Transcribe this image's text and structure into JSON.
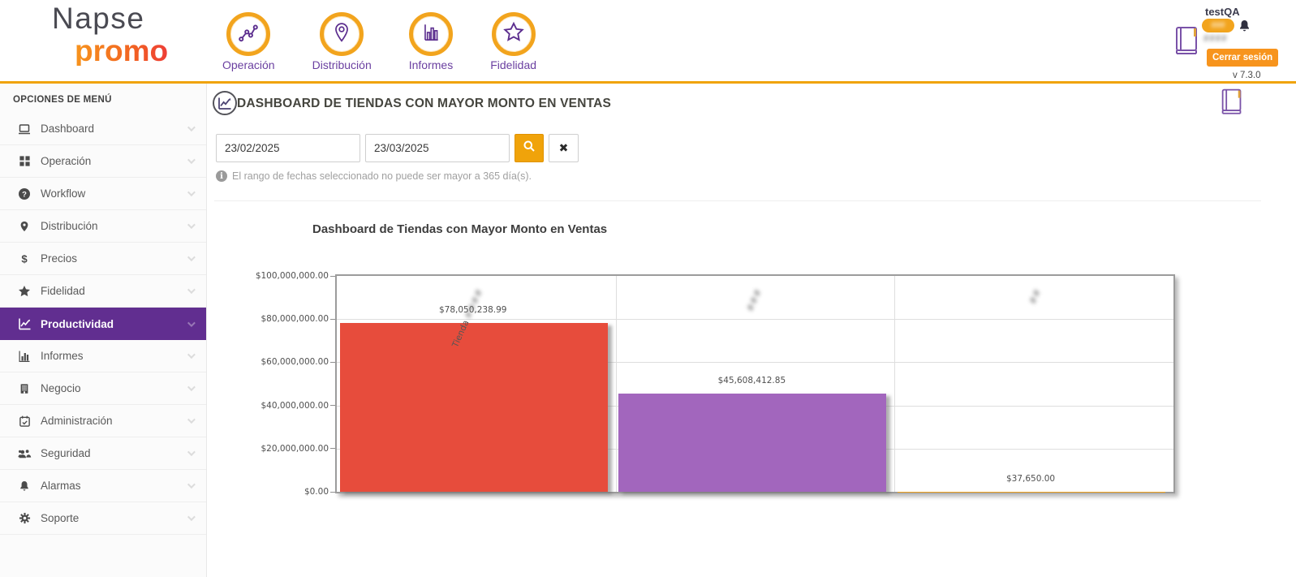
{
  "app": {
    "brand_line1": "Napse",
    "brand_line2": "promo",
    "version": "v 7.3.0"
  },
  "header": {
    "nav": [
      {
        "label": "Operación",
        "icon": "share-nodes-icon"
      },
      {
        "label": "Distribución",
        "icon": "map-pin-icon"
      },
      {
        "label": "Informes",
        "icon": "bar-chart-icon"
      },
      {
        "label": "Fidelidad",
        "icon": "star-icon"
      }
    ],
    "user": {
      "name": "testQA",
      "badge_text_masked": "###",
      "detail_text_masked": "####",
      "logout_label": "Cerrar sesión"
    }
  },
  "sidebar": {
    "title": "OPCIONES DE MENÚ",
    "items": [
      {
        "label": "Dashboard",
        "icon": "monitor-icon",
        "active": false
      },
      {
        "label": "Operación",
        "icon": "grid-icon",
        "active": false
      },
      {
        "label": "Workflow",
        "icon": "question-circle-icon",
        "active": false
      },
      {
        "label": "Distribución",
        "icon": "map-pin-icon",
        "active": false
      },
      {
        "label": "Precios",
        "icon": "dollar-icon",
        "active": false
      },
      {
        "label": "Fidelidad",
        "icon": "star-icon",
        "active": false
      },
      {
        "label": "Productividad",
        "icon": "chart-line-icon",
        "active": true
      },
      {
        "label": "Informes",
        "icon": "bar-chart-icon",
        "active": false
      },
      {
        "label": "Negocio",
        "icon": "building-icon",
        "active": false
      },
      {
        "label": "Administración",
        "icon": "calendar-check-icon",
        "active": false
      },
      {
        "label": "Seguridad",
        "icon": "users-icon",
        "active": false
      },
      {
        "label": "Alarmas",
        "icon": "bell-icon",
        "active": false
      },
      {
        "label": "Soporte",
        "icon": "gear-icon",
        "active": false
      }
    ]
  },
  "main": {
    "page_title": "DASHBOARD DE TIENDAS CON MAYOR MONTO EN VENTAS",
    "filters": {
      "date_from": "23/02/2025",
      "date_to": "23/03/2025"
    },
    "info_text": "El rango de fechas seleccionado no puede ser mayor a 365 día(s)."
  },
  "chart_data": {
    "type": "bar",
    "title": "Dashboard de Tiendas con Mayor Monto en Ventas",
    "categories": [
      {
        "visible": "Tienda ",
        "masked": "####"
      },
      {
        "visible": "",
        "masked": "###"
      },
      {
        "visible": "",
        "masked": "##"
      }
    ],
    "values": [
      78050238.99,
      45608412.85,
      37650.0
    ],
    "value_labels": [
      "$78,050,238.99",
      "$45,608,412.85",
      "$37,650.00"
    ],
    "bar_colors": [
      "#e74c3c",
      "#a266bd",
      "#f5a623"
    ],
    "ylim": [
      0,
      100000000
    ],
    "ytick_labels": [
      "$100,000,000.00",
      "$80,000,000.00",
      "$60,000,000.00",
      "$40,000,000.00",
      "$20,000,000.00",
      "$0.00"
    ],
    "grid": true,
    "legend_position": "none",
    "xlabel": "",
    "ylabel": ""
  },
  "colors": {
    "accent_orange": "#f0a30a",
    "active_purple": "#612e90",
    "nav_label_purple": "#6a3fa0",
    "bar_red": "#e74c3c",
    "bar_purple": "#a266bd"
  }
}
